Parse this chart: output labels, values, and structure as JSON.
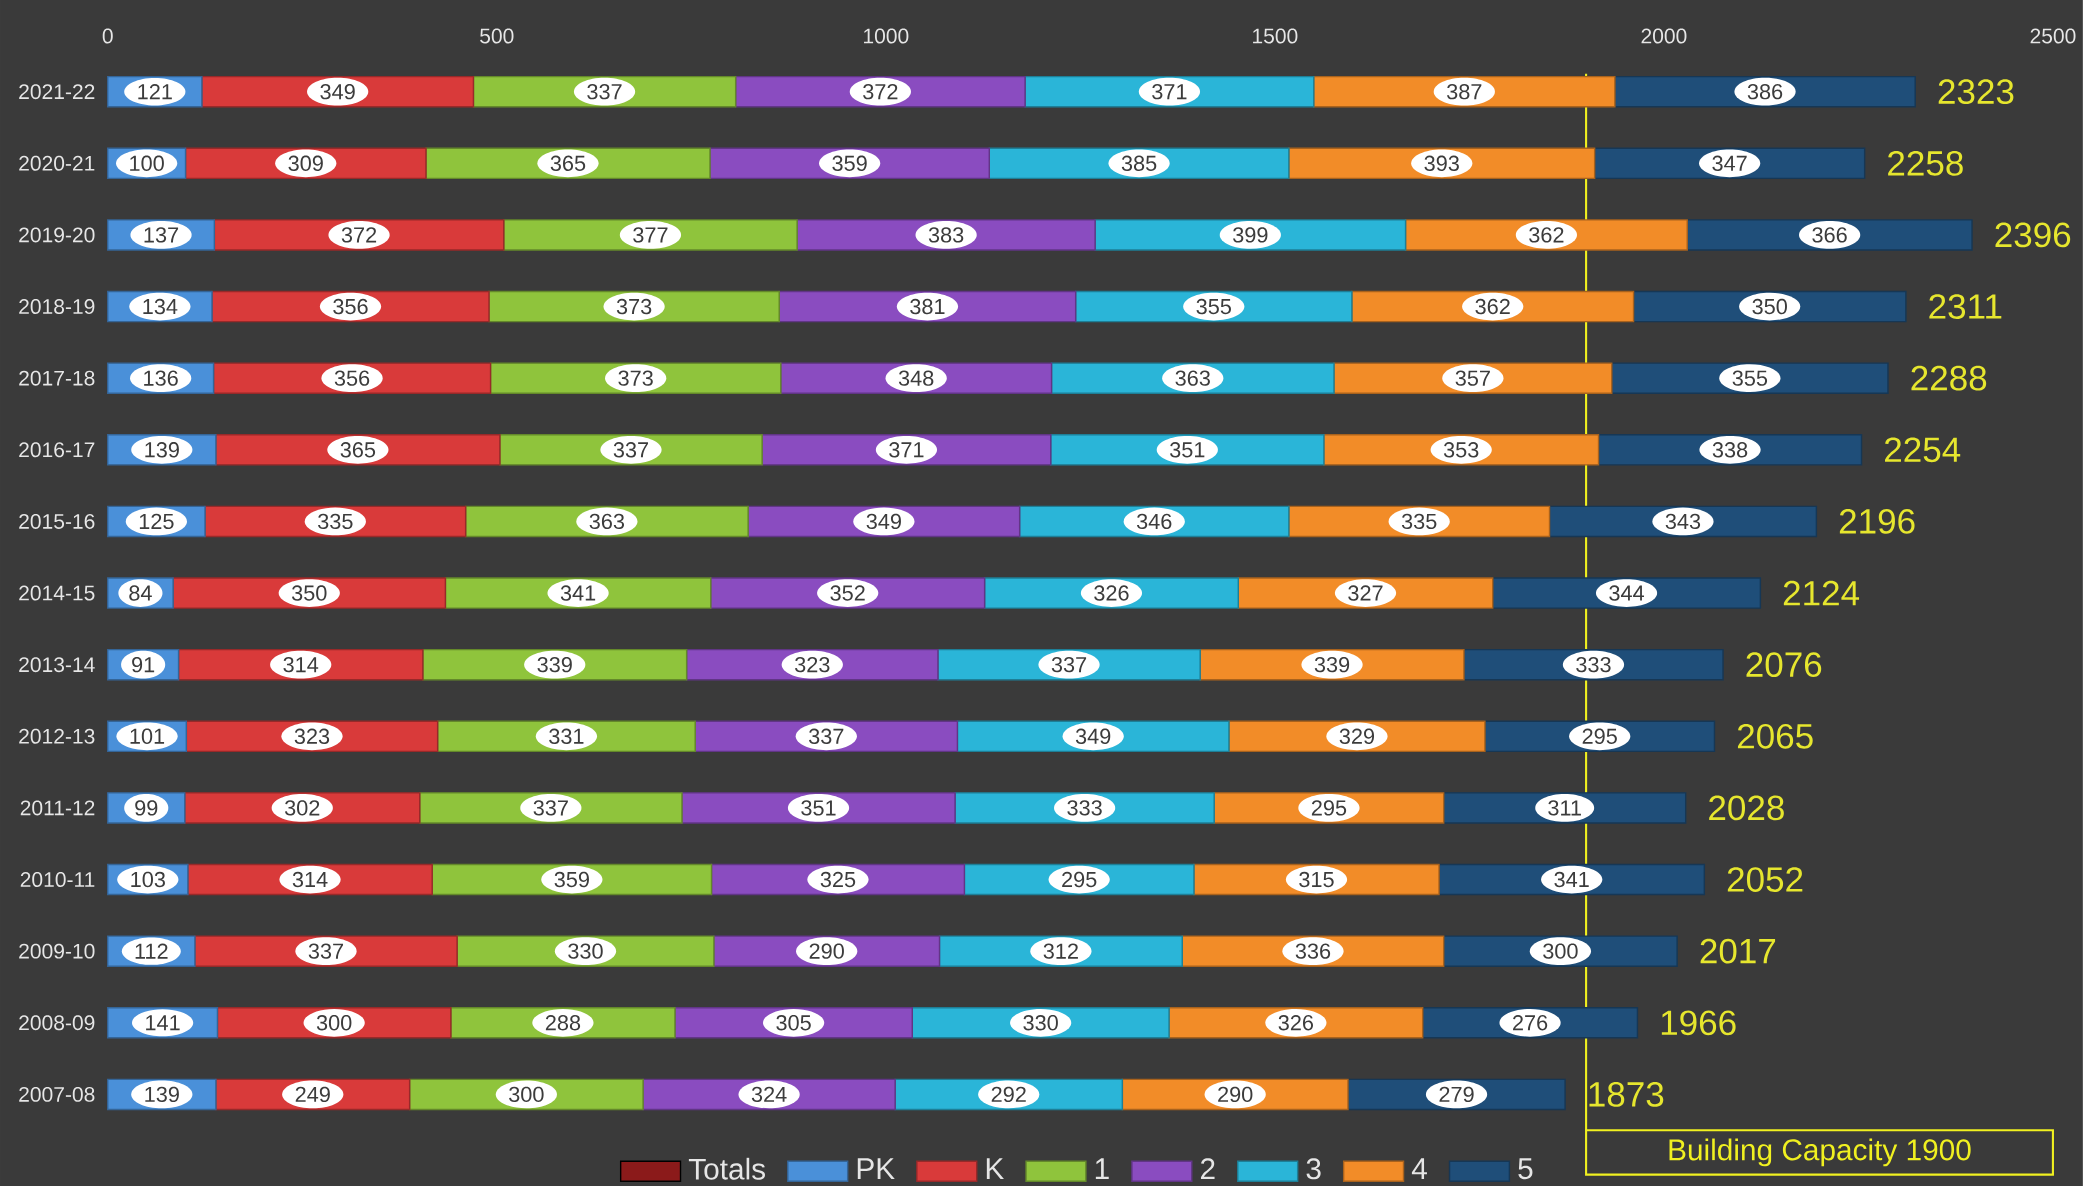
{
  "chart_data": {
    "type": "bar",
    "orientation": "horizontal",
    "stacked": true,
    "data_labels": true,
    "legend": "bottom",
    "grid": false,
    "categories": [
      "2021-22",
      "2020-21",
      "2019-20",
      "2018-19",
      "2017-18",
      "2016-17",
      "2015-16",
      "2014-15",
      "2013-14",
      "2012-13",
      "2011-12",
      "2010-11",
      "2009-10",
      "2008-09",
      "2007-08"
    ],
    "xlim": [
      0,
      2500
    ],
    "xticks": [
      0,
      500,
      1000,
      1500,
      2000,
      2500
    ],
    "series": [
      {
        "name": "Totals",
        "color": "#8b1a1a",
        "values": [
          null,
          null,
          null,
          null,
          null,
          null,
          null,
          null,
          null,
          null,
          null,
          null,
          null,
          null,
          null
        ]
      },
      {
        "name": "PK",
        "color": "#4a90d9",
        "values": [
          121,
          100,
          137,
          134,
          136,
          139,
          125,
          84,
          91,
          101,
          99,
          103,
          112,
          141,
          139
        ]
      },
      {
        "name": "K",
        "color": "#d93a3a",
        "values": [
          349,
          309,
          372,
          356,
          356,
          365,
          335,
          350,
          314,
          323,
          302,
          314,
          337,
          300,
          249
        ]
      },
      {
        "name": "1",
        "color": "#8fc43c",
        "values": [
          337,
          365,
          377,
          373,
          373,
          337,
          363,
          341,
          339,
          331,
          337,
          359,
          330,
          288,
          300
        ]
      },
      {
        "name": "2",
        "color": "#8a4cc0",
        "values": [
          372,
          359,
          383,
          381,
          348,
          371,
          349,
          352,
          323,
          337,
          351,
          325,
          290,
          305,
          324
        ]
      },
      {
        "name": "3",
        "color": "#2ab5d8",
        "values": [
          371,
          385,
          399,
          355,
          363,
          351,
          346,
          326,
          337,
          349,
          333,
          295,
          312,
          330,
          292
        ]
      },
      {
        "name": "4",
        "color": "#f28c28",
        "values": [
          387,
          393,
          362,
          362,
          357,
          353,
          335,
          327,
          339,
          329,
          295,
          315,
          336,
          326,
          290
        ]
      },
      {
        "name": "5",
        "color": "#1f4e79",
        "values": [
          386,
          347,
          366,
          350,
          355,
          338,
          343,
          344,
          333,
          295,
          311,
          341,
          300,
          276,
          279
        ]
      }
    ],
    "totals": [
      "2323",
      "2258",
      "2396",
      "2311",
      "2288",
      "2254",
      "2196",
      "2124",
      "2076",
      "2065",
      "2028",
      "2052",
      "2017",
      "1966",
      "1873"
    ],
    "ref_lines": [
      {
        "axis": "x",
        "value": 1900,
        "label": "Building Capacity 1900",
        "color": "#f0f020"
      }
    ]
  }
}
